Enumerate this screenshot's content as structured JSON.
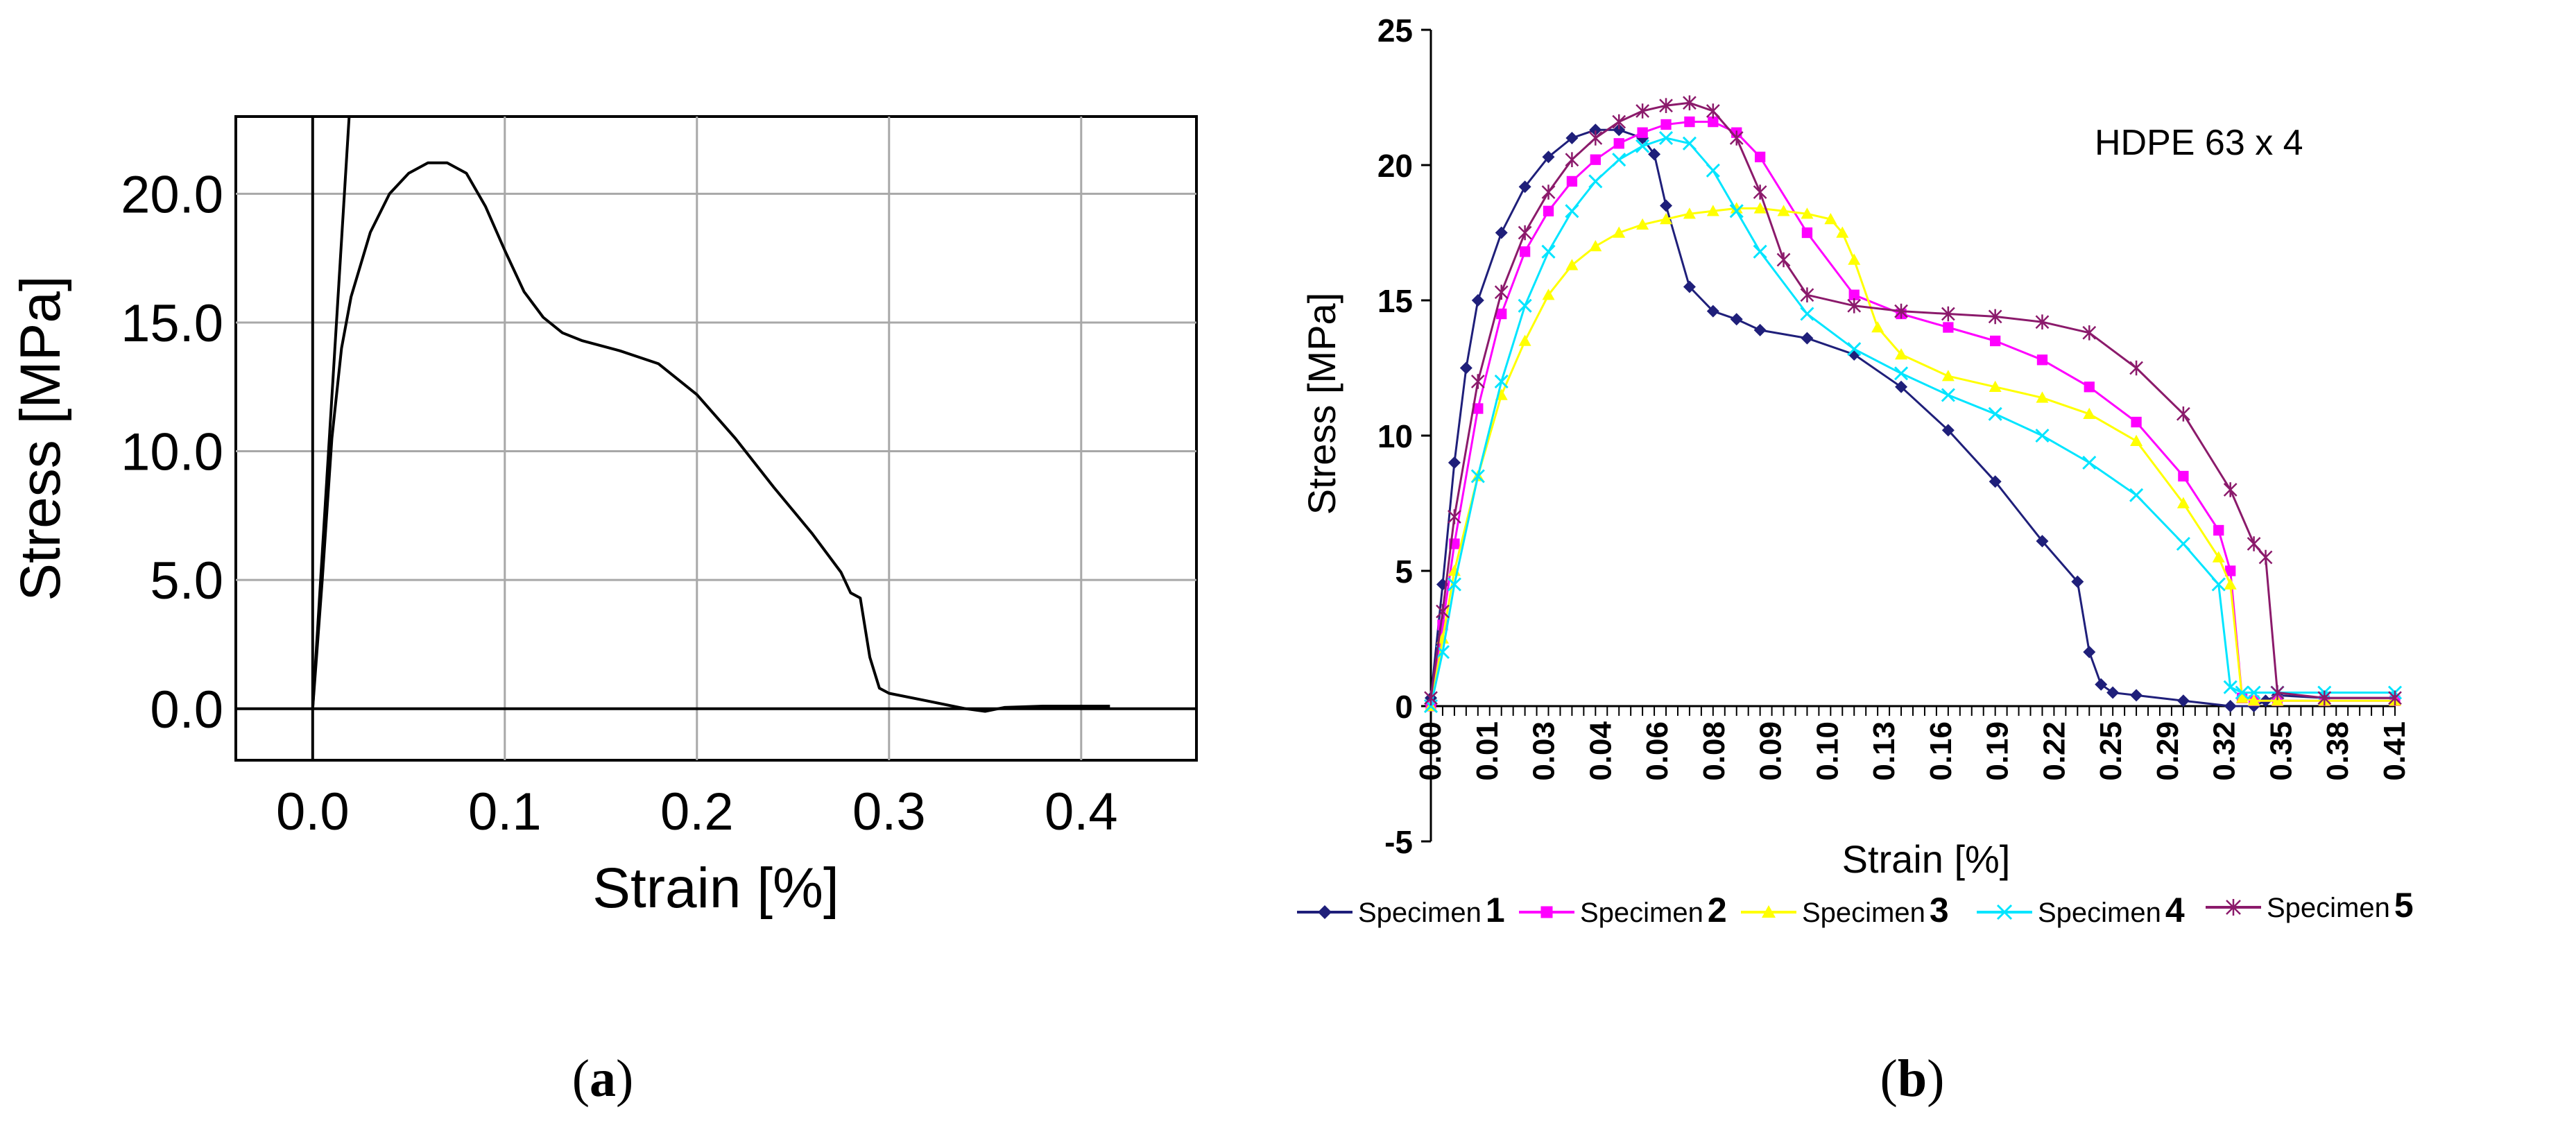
{
  "panels": {
    "a": {
      "label_text": "a"
    },
    "b": {
      "label_text": "b"
    }
  },
  "chart_data": [
    {
      "id": "a",
      "type": "line",
      "title": "",
      "xlabel": "Strain [%]",
      "ylabel": "Stress [MPa]",
      "xlim": [
        -0.04,
        0.46
      ],
      "ylim": [
        -2.0,
        23.0
      ],
      "xticks": [
        0.0,
        0.1,
        0.2,
        0.3,
        0.4
      ],
      "xtick_labels": [
        "0.0",
        "0.1",
        "0.2",
        "0.3",
        "0.4"
      ],
      "yticks": [
        0.0,
        5.0,
        10.0,
        15.0,
        20.0
      ],
      "ytick_labels": [
        "0.0",
        "5.0",
        "10.0",
        "15.0",
        "20.0"
      ],
      "grid": true,
      "color": "#000000",
      "series": [
        {
          "name": "curve",
          "x": [
            0.0,
            0.005,
            0.01,
            0.015,
            0.02,
            0.03,
            0.04,
            0.05,
            0.06,
            0.07,
            0.08,
            0.09,
            0.1,
            0.11,
            0.12,
            0.13,
            0.14,
            0.16,
            0.18,
            0.2,
            0.22,
            0.24,
            0.26,
            0.275,
            0.28,
            0.285,
            0.29,
            0.295,
            0.3,
            0.32,
            0.34,
            0.35,
            0.36,
            0.38,
            0.4,
            0.415
          ],
          "y": [
            0.0,
            5.0,
            10.5,
            14.0,
            16.0,
            18.5,
            20.0,
            20.8,
            21.2,
            21.2,
            20.8,
            19.5,
            17.8,
            16.2,
            15.2,
            14.6,
            14.3,
            13.9,
            13.4,
            12.2,
            10.5,
            8.6,
            6.8,
            5.3,
            4.5,
            4.3,
            2.0,
            0.8,
            0.6,
            0.3,
            0.0,
            -0.1,
            0.05,
            0.1,
            0.1,
            0.1
          ]
        },
        {
          "name": "elastic-line",
          "x": [
            0.0,
            0.019
          ],
          "y": [
            0.0,
            23.0
          ]
        }
      ],
      "vlines": [
        0.0
      ],
      "hlines": [
        0.0
      ]
    },
    {
      "id": "b",
      "type": "line",
      "title": "",
      "annotation": "HDPE 63 x 4",
      "xlabel": "Strain [%]",
      "ylabel": "Stress [MPa]",
      "xlim": [
        0.0,
        0.41
      ],
      "ylim": [
        -5,
        25
      ],
      "yticks": [
        -5,
        0,
        5,
        10,
        15,
        20,
        25
      ],
      "ytick_labels": [
        "-5",
        "0",
        "5",
        "10",
        "15",
        "20",
        "25"
      ],
      "xtick_labels": [
        "0.00",
        "0.01",
        "0.03",
        "0.04",
        "0.06",
        "0.08",
        "0.09",
        "0.10",
        "0.13",
        "0.16",
        "0.19",
        "0.22",
        "0.25",
        "0.29",
        "0.32",
        "0.35",
        "0.38",
        "0.41"
      ],
      "grid": false,
      "legend": "bottom",
      "series": [
        {
          "name": "Specimen",
          "number": "1",
          "color": "#1f1f7a",
          "marker": "diamond",
          "x": [
            0.0,
            0.005,
            0.01,
            0.015,
            0.02,
            0.03,
            0.04,
            0.05,
            0.06,
            0.07,
            0.08,
            0.09,
            0.095,
            0.1,
            0.11,
            0.12,
            0.13,
            0.14,
            0.16,
            0.18,
            0.2,
            0.22,
            0.24,
            0.26,
            0.275,
            0.28,
            0.285,
            0.29,
            0.3,
            0.32,
            0.34,
            0.35,
            0.355,
            0.36,
            0.38,
            0.41
          ],
          "y": [
            0.3,
            4.5,
            9.0,
            12.5,
            15.0,
            17.5,
            19.2,
            20.3,
            21.0,
            21.3,
            21.3,
            21.0,
            20.4,
            18.5,
            15.5,
            14.6,
            14.3,
            13.9,
            13.6,
            13.0,
            11.8,
            10.2,
            8.3,
            6.1,
            4.6,
            2.0,
            0.8,
            0.5,
            0.4,
            0.2,
            0.0,
            0.0,
            0.2,
            0.4,
            0.3,
            0.3
          ]
        },
        {
          "name": "Specimen",
          "number": "2",
          "color": "#ff00ff",
          "marker": "square",
          "x": [
            0.0,
            0.005,
            0.01,
            0.02,
            0.03,
            0.04,
            0.05,
            0.06,
            0.07,
            0.08,
            0.09,
            0.1,
            0.11,
            0.12,
            0.13,
            0.14,
            0.16,
            0.18,
            0.2,
            0.22,
            0.24,
            0.26,
            0.28,
            0.3,
            0.32,
            0.335,
            0.34,
            0.345,
            0.35,
            0.36,
            0.38,
            0.41
          ],
          "y": [
            0.0,
            3.0,
            6.0,
            11.0,
            14.5,
            16.8,
            18.3,
            19.4,
            20.2,
            20.8,
            21.2,
            21.5,
            21.6,
            21.6,
            21.2,
            20.3,
            17.5,
            15.2,
            14.5,
            14.0,
            13.5,
            12.8,
            11.8,
            10.5,
            8.5,
            6.5,
            5.0,
            0.3,
            0.2,
            0.2,
            0.2,
            0.2
          ]
        },
        {
          "name": "Specimen",
          "number": "3",
          "color": "#ffff00",
          "marker": "triangle",
          "x": [
            0.0,
            0.005,
            0.01,
            0.02,
            0.03,
            0.04,
            0.05,
            0.06,
            0.07,
            0.08,
            0.09,
            0.1,
            0.11,
            0.12,
            0.13,
            0.14,
            0.15,
            0.16,
            0.17,
            0.175,
            0.18,
            0.19,
            0.2,
            0.22,
            0.24,
            0.26,
            0.28,
            0.3,
            0.32,
            0.335,
            0.34,
            0.345,
            0.35,
            0.36,
            0.38,
            0.41
          ],
          "y": [
            0.0,
            2.5,
            5.0,
            8.5,
            11.5,
            13.5,
            15.2,
            16.3,
            17.0,
            17.5,
            17.8,
            18.0,
            18.2,
            18.3,
            18.4,
            18.4,
            18.3,
            18.2,
            18.0,
            17.5,
            16.5,
            14.0,
            13.0,
            12.2,
            11.8,
            11.4,
            10.8,
            9.8,
            7.5,
            5.5,
            4.5,
            0.3,
            0.2,
            0.2,
            0.2,
            0.2
          ]
        },
        {
          "name": "Specimen",
          "number": "4",
          "color": "#00e5ff",
          "marker": "x",
          "x": [
            0.0,
            0.005,
            0.01,
            0.02,
            0.03,
            0.04,
            0.05,
            0.06,
            0.07,
            0.08,
            0.09,
            0.1,
            0.11,
            0.12,
            0.13,
            0.14,
            0.16,
            0.18,
            0.2,
            0.22,
            0.24,
            0.26,
            0.28,
            0.3,
            0.32,
            0.335,
            0.34,
            0.345,
            0.35,
            0.36,
            0.38,
            0.41
          ],
          "y": [
            0.0,
            2.0,
            4.5,
            8.5,
            12.0,
            14.8,
            16.8,
            18.3,
            19.4,
            20.2,
            20.7,
            21.0,
            20.8,
            19.8,
            18.3,
            16.8,
            14.5,
            13.2,
            12.3,
            11.5,
            10.8,
            10.0,
            9.0,
            7.8,
            6.0,
            4.5,
            0.7,
            0.5,
            0.5,
            0.5,
            0.5,
            0.5
          ]
        },
        {
          "name": "Specimen",
          "number": "5",
          "color": "#8b1a6b",
          "marker": "star",
          "x": [
            0.0,
            0.005,
            0.01,
            0.02,
            0.03,
            0.04,
            0.05,
            0.06,
            0.07,
            0.08,
            0.09,
            0.1,
            0.11,
            0.12,
            0.13,
            0.14,
            0.15,
            0.16,
            0.18,
            0.2,
            0.22,
            0.24,
            0.26,
            0.28,
            0.3,
            0.32,
            0.34,
            0.35,
            0.355,
            0.36,
            0.38,
            0.41
          ],
          "y": [
            0.3,
            3.5,
            7.0,
            12.0,
            15.3,
            17.5,
            19.0,
            20.2,
            21.0,
            21.6,
            22.0,
            22.2,
            22.3,
            22.0,
            21.0,
            19.0,
            16.5,
            15.2,
            14.8,
            14.6,
            14.5,
            14.4,
            14.2,
            13.8,
            12.5,
            10.8,
            8.0,
            6.0,
            5.5,
            0.5,
            0.3,
            0.3
          ]
        }
      ]
    }
  ]
}
